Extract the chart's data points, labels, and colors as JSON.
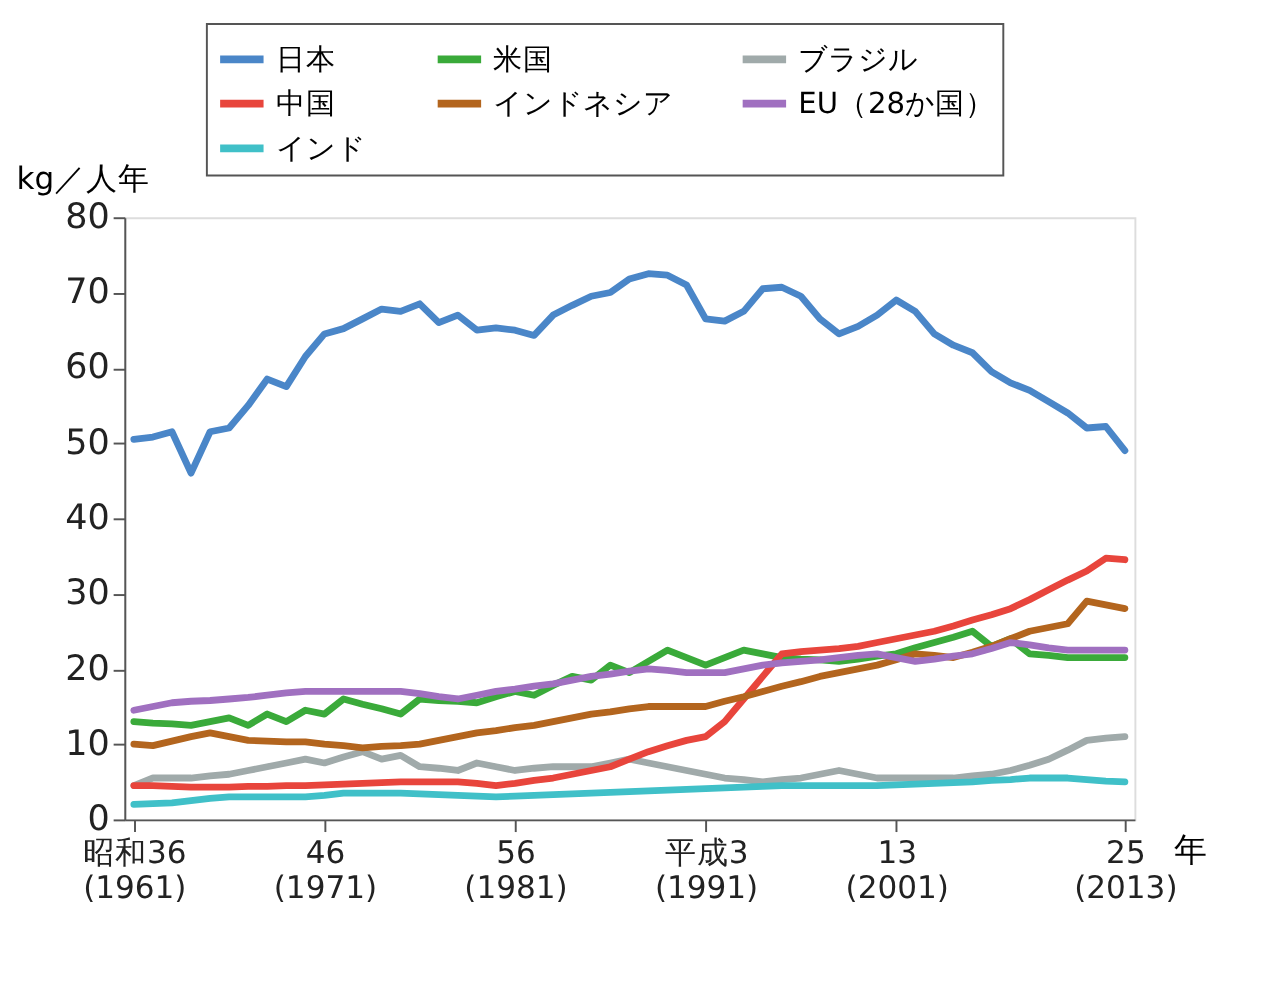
{
  "chart_data": {
    "type": "line",
    "ylabel": "kg／人年",
    "xlabel": "年",
    "categories": [
      "昭和36\n(1961)",
      null,
      null,
      null,
      null,
      null,
      null,
      null,
      null,
      null,
      "46\n(1971)",
      null,
      null,
      null,
      null,
      null,
      null,
      null,
      null,
      null,
      "56\n(1981)",
      null,
      null,
      null,
      null,
      null,
      null,
      null,
      null,
      null,
      "平成3\n(1991)",
      null,
      null,
      null,
      null,
      null,
      null,
      null,
      null,
      null,
      "13\n(2001)",
      null,
      null,
      null,
      null,
      null,
      null,
      null,
      null,
      null,
      null,
      null,
      "25\n(2013)"
    ],
    "ylim": [
      0,
      80
    ],
    "yticks": [
      0,
      10,
      20,
      30,
      40,
      50,
      60,
      70,
      80
    ],
    "grid": false,
    "legend": "top",
    "marker": "none",
    "line_style": "solid",
    "series": [
      {
        "name": "日本",
        "color": "#4a86c8",
        "values": [
          50.5,
          50.8,
          51.5,
          46,
          51.5,
          52,
          55,
          58.5,
          57.5,
          61.5,
          64.5,
          65.2,
          66.5,
          67.8,
          67.5,
          68.5,
          66,
          67,
          65,
          65.3,
          65,
          64.3,
          67,
          68.3,
          69.5,
          70,
          71.8,
          72.5,
          72.3,
          71,
          66.5,
          66.2,
          67.5,
          70.5,
          70.7,
          69.5,
          66.5,
          64.5,
          65.5,
          67,
          69,
          67.5,
          64.5,
          63,
          62,
          59.5,
          58,
          57,
          55.5,
          54,
          52,
          52.2,
          49
        ]
      },
      {
        "name": "米国",
        "color": "#3aaa3a",
        "values": [
          13,
          12.8,
          12.7,
          12.5,
          13,
          13.5,
          12.5,
          14,
          13,
          14.5,
          14,
          16,
          15.3,
          14.7,
          14,
          16,
          15.8,
          15.7,
          15.5,
          16.3,
          17,
          16.5,
          17.8,
          19,
          18.5,
          20.5,
          19.5,
          21,
          22.5,
          21.5,
          20.5,
          21.5,
          22.5,
          22,
          21.5,
          21.3,
          21.2,
          21,
          21.3,
          21.7,
          22,
          22.8,
          23.5,
          24.2,
          25,
          23,
          24,
          22,
          21.8,
          21.5,
          21.5,
          21.5,
          21.5
        ]
      },
      {
        "name": "ブラジル",
        "color": "#a0aaaa",
        "values": [
          4.5,
          5.5,
          5.5,
          5.5,
          5.8,
          6,
          6.5,
          7,
          7.5,
          8,
          7.5,
          8.3,
          9,
          8,
          8.5,
          7,
          6.8,
          6.5,
          7.5,
          7,
          6.5,
          6.8,
          7,
          7,
          7,
          7.5,
          8,
          7.5,
          7,
          6.5,
          6,
          5.5,
          5.3,
          5,
          5.3,
          5.5,
          6,
          6.5,
          6,
          5.5,
          5.5,
          5.5,
          5.5,
          5.5,
          5.8,
          6,
          6.5,
          7.2,
          8,
          9.2,
          10.5,
          10.8,
          11
        ]
      },
      {
        "name": "中国",
        "color": "#e8453c",
        "values": [
          4.5,
          4.5,
          4.4,
          4.3,
          4.3,
          4.3,
          4.4,
          4.4,
          4.5,
          4.5,
          4.6,
          4.7,
          4.8,
          4.9,
          5,
          5,
          5,
          5,
          4.8,
          4.5,
          4.8,
          5.2,
          5.5,
          6,
          6.5,
          7,
          8,
          9,
          9.8,
          10.5,
          11,
          13,
          16,
          19,
          22,
          22.3,
          22.5,
          22.7,
          23,
          23.5,
          24,
          24.5,
          25,
          25.7,
          26.5,
          27.2,
          28,
          29.2,
          30.5,
          31.8,
          33,
          34.7,
          34.5
        ]
      },
      {
        "name": "インドネシア",
        "color": "#b3651e",
        "values": [
          10,
          9.8,
          10.4,
          11,
          11.5,
          11,
          10.5,
          10.4,
          10.3,
          10.3,
          10,
          9.8,
          9.5,
          9.7,
          9.8,
          10,
          10.5,
          11,
          11.5,
          11.8,
          12.2,
          12.5,
          13,
          13.5,
          14,
          14.3,
          14.7,
          15,
          15,
          15,
          15,
          15.7,
          16.3,
          17,
          17.7,
          18.3,
          19,
          19.5,
          20,
          20.5,
          21.2,
          22,
          21.8,
          21.5,
          22.2,
          23,
          24,
          25,
          25.5,
          26,
          29,
          28.5,
          28
        ]
      },
      {
        "name": "EU（28か国）",
        "color": "#a070c0",
        "values": [
          14.5,
          15,
          15.5,
          15.7,
          15.8,
          16,
          16.2,
          16.5,
          16.8,
          17,
          17,
          17,
          17,
          17,
          17,
          16.7,
          16.3,
          16,
          16.5,
          17,
          17.3,
          17.7,
          18,
          18.5,
          19,
          19.3,
          19.7,
          20,
          19.8,
          19.5,
          19.5,
          19.5,
          20,
          20.5,
          20.8,
          21,
          21.2,
          21.5,
          21.8,
          22,
          21.5,
          21,
          21.3,
          21.7,
          22,
          22.7,
          23.5,
          23.2,
          22.8,
          22.5,
          22.5,
          22.5,
          22.5
        ]
      },
      {
        "name": "インド",
        "color": "#40c0c8",
        "values": [
          2,
          2.1,
          2.2,
          2.5,
          2.8,
          3,
          3,
          3,
          3,
          3,
          3.2,
          3.5,
          3.5,
          3.5,
          3.5,
          3.4,
          3.3,
          3.2,
          3.1,
          3,
          3.1,
          3.2,
          3.3,
          3.4,
          3.5,
          3.6,
          3.7,
          3.8,
          3.9,
          4,
          4.1,
          4.2,
          4.3,
          4.4,
          4.5,
          4.5,
          4.5,
          4.5,
          4.5,
          4.5,
          4.6,
          4.7,
          4.8,
          4.9,
          5,
          5.2,
          5.3,
          5.5,
          5.5,
          5.5,
          5.3,
          5.1,
          5
        ]
      }
    ]
  }
}
